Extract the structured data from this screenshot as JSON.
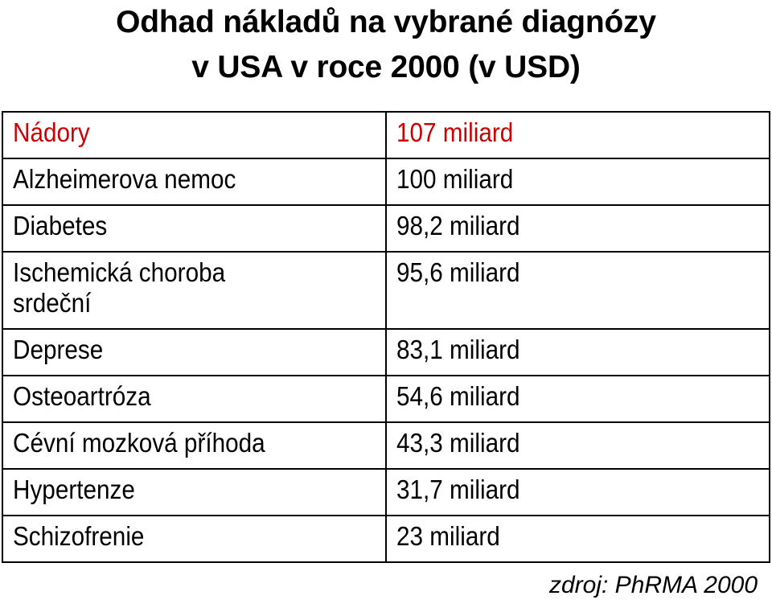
{
  "title": {
    "line1": "Odhad nákladů na vybrané diagnózy",
    "line2": "v USA v roce 2000 (v USD)"
  },
  "table": {
    "rows": [
      {
        "diagnosis": "Nádory",
        "cost": "107 miliard"
      },
      {
        "diagnosis": "Alzheimerova nemoc",
        "cost": "100 miliard"
      },
      {
        "diagnosis": "Diabetes",
        "cost": "98,2 miliard"
      },
      {
        "diagnosis_line1": "Ischemická choroba",
        "diagnosis_line2": "srdeční",
        "cost": "95,6 miliard"
      },
      {
        "diagnosis": "Deprese",
        "cost": "83,1 miliard"
      },
      {
        "diagnosis": "Osteoartróza",
        "cost": "54,6 miliard"
      },
      {
        "diagnosis": "Cévní mozková příhoda",
        "cost": "43,3 miliard"
      },
      {
        "diagnosis": "Hypertenze",
        "cost": "31,7 miliard"
      },
      {
        "diagnosis": "Schizofrenie",
        "cost": "23 miliard"
      }
    ]
  },
  "source": "zdroj: PhRMA 2000",
  "colors": {
    "highlight_row": "#cc0000",
    "text": "#000000",
    "border": "#000000",
    "background": "#ffffff"
  }
}
